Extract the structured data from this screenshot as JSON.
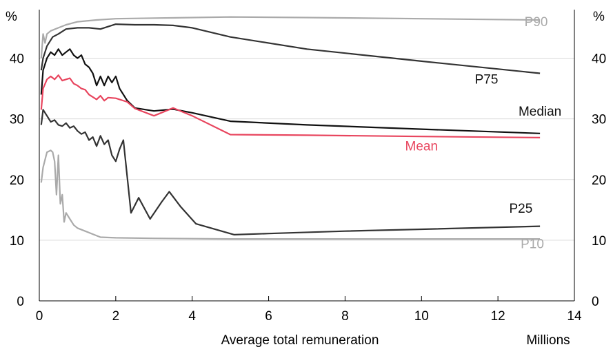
{
  "chart_data": {
    "type": "line",
    "title": "",
    "xlabel": "Average total remuneration",
    "xunit": "Millions",
    "ylabel_left": "%",
    "ylabel_right": "%",
    "xlim": [
      0,
      14
    ],
    "ylim": [
      0,
      48
    ],
    "x_ticks": [
      0,
      2,
      4,
      6,
      8,
      10,
      12,
      14
    ],
    "y_ticks": [
      0,
      10,
      20,
      30,
      40
    ],
    "grid": "horizontal",
    "series": [
      {
        "name": "P90",
        "color": "#aaaaaa",
        "points": [
          [
            0.05,
            40
          ],
          [
            0.1,
            44
          ],
          [
            0.15,
            42.5
          ],
          [
            0.2,
            44
          ],
          [
            0.3,
            44.5
          ],
          [
            0.5,
            45
          ],
          [
            0.7,
            45.5
          ],
          [
            1.0,
            46
          ],
          [
            1.5,
            46.3
          ],
          [
            2.0,
            46.5
          ],
          [
            3.0,
            46.6
          ],
          [
            4.0,
            46.7
          ],
          [
            5.0,
            46.8
          ],
          [
            7.0,
            46.7
          ],
          [
            10.0,
            46.5
          ],
          [
            13.1,
            46.3
          ]
        ]
      },
      {
        "name": "P75",
        "color": "#333333",
        "points": [
          [
            0.05,
            38
          ],
          [
            0.1,
            40
          ],
          [
            0.2,
            42
          ],
          [
            0.35,
            43.5
          ],
          [
            0.5,
            44
          ],
          [
            0.7,
            44.8
          ],
          [
            1.0,
            45
          ],
          [
            1.3,
            45
          ],
          [
            1.6,
            44.8
          ],
          [
            2.0,
            45.6
          ],
          [
            2.5,
            45.5
          ],
          [
            3.0,
            45.5
          ],
          [
            3.5,
            45.4
          ],
          [
            4.0,
            45
          ],
          [
            5.0,
            43.5
          ],
          [
            7.0,
            41.5
          ],
          [
            10.0,
            39.5
          ],
          [
            13.1,
            37.5
          ]
        ]
      },
      {
        "name": "Median",
        "color": "#111111",
        "points": [
          [
            0.05,
            34
          ],
          [
            0.1,
            38
          ],
          [
            0.2,
            40
          ],
          [
            0.3,
            41
          ],
          [
            0.4,
            40.5
          ],
          [
            0.5,
            41.5
          ],
          [
            0.6,
            40.5
          ],
          [
            0.7,
            41
          ],
          [
            0.8,
            41.5
          ],
          [
            0.9,
            40.5
          ],
          [
            1.0,
            40
          ],
          [
            1.1,
            40.5
          ],
          [
            1.2,
            39
          ],
          [
            1.3,
            38.5
          ],
          [
            1.4,
            37.5
          ],
          [
            1.5,
            35.5
          ],
          [
            1.6,
            37
          ],
          [
            1.7,
            35.5
          ],
          [
            1.8,
            37
          ],
          [
            1.9,
            36
          ],
          [
            2.0,
            37
          ],
          [
            2.1,
            35
          ],
          [
            2.3,
            33
          ],
          [
            2.5,
            31.8
          ],
          [
            3.0,
            31.3
          ],
          [
            3.5,
            31.6
          ],
          [
            4.0,
            31
          ],
          [
            5.0,
            29.6
          ],
          [
            7.0,
            29
          ],
          [
            10.0,
            28.3
          ],
          [
            13.1,
            27.6
          ]
        ]
      },
      {
        "name": "Mean",
        "color": "#e8455e",
        "points": [
          [
            0.05,
            31.5
          ],
          [
            0.1,
            35
          ],
          [
            0.2,
            36.5
          ],
          [
            0.3,
            37
          ],
          [
            0.4,
            36.5
          ],
          [
            0.5,
            37.2
          ],
          [
            0.6,
            36.3
          ],
          [
            0.7,
            36.5
          ],
          [
            0.8,
            36.7
          ],
          [
            0.9,
            35.8
          ],
          [
            1.0,
            35.5
          ],
          [
            1.1,
            35
          ],
          [
            1.2,
            34.8
          ],
          [
            1.3,
            34
          ],
          [
            1.5,
            33.2
          ],
          [
            1.6,
            33.8
          ],
          [
            1.7,
            33
          ],
          [
            1.8,
            33.5
          ],
          [
            2.0,
            33.4
          ],
          [
            2.3,
            32.8
          ],
          [
            2.5,
            31.7
          ],
          [
            3.0,
            30.5
          ],
          [
            3.5,
            31.8
          ],
          [
            4.0,
            30.5
          ],
          [
            5.0,
            27.4
          ],
          [
            7.0,
            27.3
          ],
          [
            10.0,
            27.1
          ],
          [
            13.1,
            26.9
          ]
        ]
      },
      {
        "name": "P25",
        "color": "#333333",
        "points": [
          [
            0.05,
            29
          ],
          [
            0.1,
            31.5
          ],
          [
            0.2,
            30.5
          ],
          [
            0.3,
            29.5
          ],
          [
            0.4,
            29.8
          ],
          [
            0.5,
            29
          ],
          [
            0.6,
            28.8
          ],
          [
            0.7,
            29.3
          ],
          [
            0.8,
            28.5
          ],
          [
            0.9,
            28.8
          ],
          [
            1.0,
            28
          ],
          [
            1.1,
            27.5
          ],
          [
            1.2,
            27.8
          ],
          [
            1.3,
            26.5
          ],
          [
            1.4,
            27
          ],
          [
            1.5,
            25.5
          ],
          [
            1.6,
            27.2
          ],
          [
            1.7,
            25.8
          ],
          [
            1.8,
            26.5
          ],
          [
            1.9,
            24
          ],
          [
            2.0,
            23
          ],
          [
            2.1,
            25
          ],
          [
            2.2,
            26.5
          ],
          [
            2.4,
            14.5
          ],
          [
            2.6,
            17
          ],
          [
            2.9,
            13.5
          ],
          [
            3.2,
            16.3
          ],
          [
            3.4,
            18
          ],
          [
            3.7,
            15.5
          ],
          [
            4.1,
            12.7
          ],
          [
            5.1,
            10.9
          ],
          [
            6.0,
            11.1
          ],
          [
            8.0,
            11.5
          ],
          [
            10.0,
            11.8
          ],
          [
            13.1,
            12.3
          ]
        ]
      },
      {
        "name": "P10",
        "color": "#aaaaaa",
        "points": [
          [
            0.05,
            19.5
          ],
          [
            0.1,
            22
          ],
          [
            0.2,
            24.5
          ],
          [
            0.3,
            24.8
          ],
          [
            0.35,
            24.5
          ],
          [
            0.4,
            23
          ],
          [
            0.45,
            17.5
          ],
          [
            0.5,
            24
          ],
          [
            0.55,
            16
          ],
          [
            0.6,
            17.5
          ],
          [
            0.65,
            13
          ],
          [
            0.7,
            14.5
          ],
          [
            0.8,
            13.5
          ],
          [
            0.9,
            12.5
          ],
          [
            1.0,
            12
          ],
          [
            1.2,
            11.5
          ],
          [
            1.4,
            11
          ],
          [
            1.6,
            10.5
          ],
          [
            2.0,
            10.4
          ],
          [
            3.0,
            10.3
          ],
          [
            5.0,
            10.2
          ],
          [
            8.0,
            10.2
          ],
          [
            13.1,
            10.2
          ]
        ]
      }
    ],
    "annotations": [
      {
        "text": "P90",
        "color": "#aaaaaa",
        "x": 13,
        "y": 45.3
      },
      {
        "text": "P75",
        "color": "#111111",
        "x": 11.7,
        "y": 35.8
      },
      {
        "text": "Median",
        "color": "#111111",
        "x": 13.1,
        "y": 30.5
      },
      {
        "text": "Mean",
        "color": "#e8455e",
        "x": 10,
        "y": 24.8
      },
      {
        "text": "P25",
        "color": "#111111",
        "x": 12.6,
        "y": 14.5
      },
      {
        "text": "P10",
        "color": "#aaaaaa",
        "x": 12.9,
        "y": 8.7
      }
    ]
  }
}
